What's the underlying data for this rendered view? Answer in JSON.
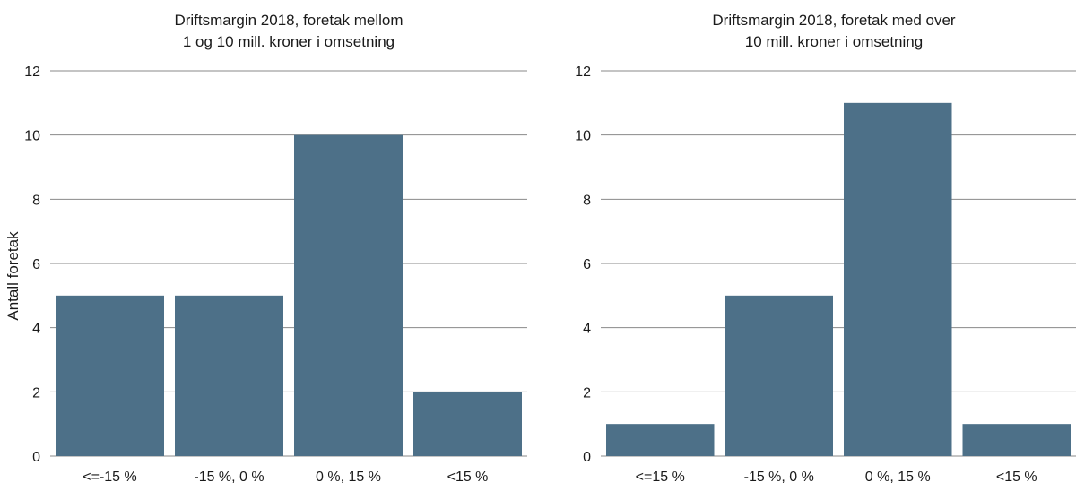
{
  "chart_data": [
    {
      "type": "bar",
      "title_lines": [
        "Driftsmargin 2018, foretak mellom",
        "1 og 10 mill. kroner i omsetning"
      ],
      "ylabel": "Antall foretak",
      "xlabel": "",
      "categories": [
        "<=-15 %",
        "-15 %, 0 %",
        "0 %, 15 %",
        "<15 %"
      ],
      "values": [
        5,
        5,
        10,
        2
      ],
      "ylim": [
        0,
        12
      ],
      "yticks": [
        0,
        2,
        4,
        6,
        8,
        10,
        12
      ],
      "grid": true,
      "bar_color": "#4d7088"
    },
    {
      "type": "bar",
      "title_lines": [
        "Driftsmargin 2018, foretak med over",
        "10 mill. kroner i omsetning"
      ],
      "ylabel": "",
      "xlabel": "",
      "categories": [
        "<=15 %",
        "-15 %, 0 %",
        "0 %, 15 %",
        "<15 %"
      ],
      "values": [
        1,
        5,
        11,
        1
      ],
      "ylim": [
        0,
        12
      ],
      "yticks": [
        0,
        2,
        4,
        6,
        8,
        10,
        12
      ],
      "grid": true,
      "bar_color": "#4d7088"
    }
  ],
  "colors": {
    "grid": "#8a8a8a",
    "text": "#1a1a1a"
  }
}
